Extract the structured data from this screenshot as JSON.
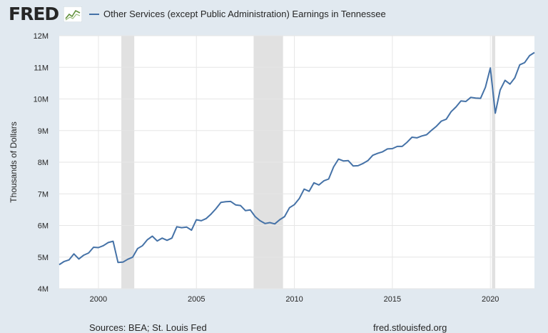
{
  "header": {
    "logo_text": "FRED",
    "logo_icon": "fred-sparkline-logo-icon",
    "legend_label": "Other Services (except Public Administration) Earnings in Tennessee"
  },
  "footer": {
    "sources": "Sources: BEA; St. Louis Fed",
    "url": "fred.stlouisfed.org"
  },
  "colors": {
    "background": "#e1e9f0",
    "plot_area": "#ffffff",
    "series": "#4572a7",
    "recession": "#e1e1e1",
    "gridline": "#e6e6e6"
  },
  "chart_data": {
    "type": "line",
    "title": "Other Services (except Public Administration) Earnings in Tennessee",
    "xlabel": "",
    "ylabel": "Thousands of Dollars",
    "xlim": [
      1998.0,
      2022.25
    ],
    "ylim": [
      4,
      12
    ],
    "y_unit_suffix": "M",
    "y_ticks": [
      4,
      5,
      6,
      7,
      8,
      9,
      10,
      11,
      12
    ],
    "y_tick_labels": [
      "4M",
      "5M",
      "6M",
      "7M",
      "8M",
      "9M",
      "10M",
      "11M",
      "12M"
    ],
    "x_ticks": [
      2000,
      2005,
      2010,
      2015,
      2020
    ],
    "x_tick_labels": [
      "2000",
      "2005",
      "2010",
      "2015",
      "2020"
    ],
    "grid": true,
    "legend_position": "top",
    "recessions": [
      [
        2001.17,
        2001.83
      ],
      [
        2007.92,
        2009.42
      ],
      [
        2020.08,
        2020.25
      ]
    ],
    "series": [
      {
        "name": "Other Services (except Public Administration) Earnings in Tennessee",
        "x": [
          1998.0,
          1998.25,
          1998.5,
          1998.75,
          1999.0,
          1999.25,
          1999.5,
          1999.75,
          2000.0,
          2000.25,
          2000.5,
          2000.75,
          2001.0,
          2001.25,
          2001.5,
          2001.75,
          2002.0,
          2002.25,
          2002.5,
          2002.75,
          2003.0,
          2003.25,
          2003.5,
          2003.75,
          2004.0,
          2004.25,
          2004.5,
          2004.75,
          2005.0,
          2005.25,
          2005.5,
          2005.75,
          2006.0,
          2006.25,
          2006.5,
          2006.75,
          2007.0,
          2007.25,
          2007.5,
          2007.75,
          2008.0,
          2008.25,
          2008.5,
          2008.75,
          2009.0,
          2009.25,
          2009.5,
          2009.75,
          2010.0,
          2010.25,
          2010.5,
          2010.75,
          2011.0,
          2011.25,
          2011.5,
          2011.75,
          2012.0,
          2012.25,
          2012.5,
          2012.75,
          2013.0,
          2013.25,
          2013.5,
          2013.75,
          2014.0,
          2014.25,
          2014.5,
          2014.75,
          2015.0,
          2015.25,
          2015.5,
          2015.75,
          2016.0,
          2016.25,
          2016.5,
          2016.75,
          2017.0,
          2017.25,
          2017.5,
          2017.75,
          2018.0,
          2018.25,
          2018.5,
          2018.75,
          2019.0,
          2019.25,
          2019.5,
          2019.75,
          2020.0,
          2020.25,
          2020.5,
          2020.75,
          2021.0,
          2021.25,
          2021.5,
          2021.75,
          2022.0,
          2022.25
        ],
        "y": [
          4.76,
          4.86,
          4.91,
          5.1,
          4.94,
          5.06,
          5.13,
          5.31,
          5.3,
          5.36,
          5.46,
          5.5,
          4.83,
          4.84,
          4.93,
          5.0,
          5.27,
          5.36,
          5.55,
          5.66,
          5.51,
          5.6,
          5.53,
          5.6,
          5.96,
          5.93,
          5.95,
          5.85,
          6.18,
          6.15,
          6.22,
          6.36,
          6.53,
          6.73,
          6.75,
          6.76,
          6.65,
          6.63,
          6.47,
          6.49,
          6.28,
          6.15,
          6.06,
          6.09,
          6.05,
          6.18,
          6.28,
          6.56,
          6.66,
          6.85,
          7.15,
          7.08,
          7.35,
          7.28,
          7.41,
          7.47,
          7.85,
          8.1,
          8.04,
          8.05,
          7.88,
          7.89,
          7.96,
          8.05,
          8.22,
          8.28,
          8.33,
          8.42,
          8.43,
          8.5,
          8.5,
          8.63,
          8.79,
          8.77,
          8.83,
          8.87,
          9.01,
          9.14,
          9.3,
          9.36,
          9.6,
          9.75,
          9.94,
          9.92,
          10.05,
          10.03,
          10.02,
          10.37,
          10.98,
          9.55,
          10.28,
          10.59,
          10.47,
          10.67,
          11.08,
          11.15,
          11.37,
          11.47
        ]
      }
    ]
  }
}
